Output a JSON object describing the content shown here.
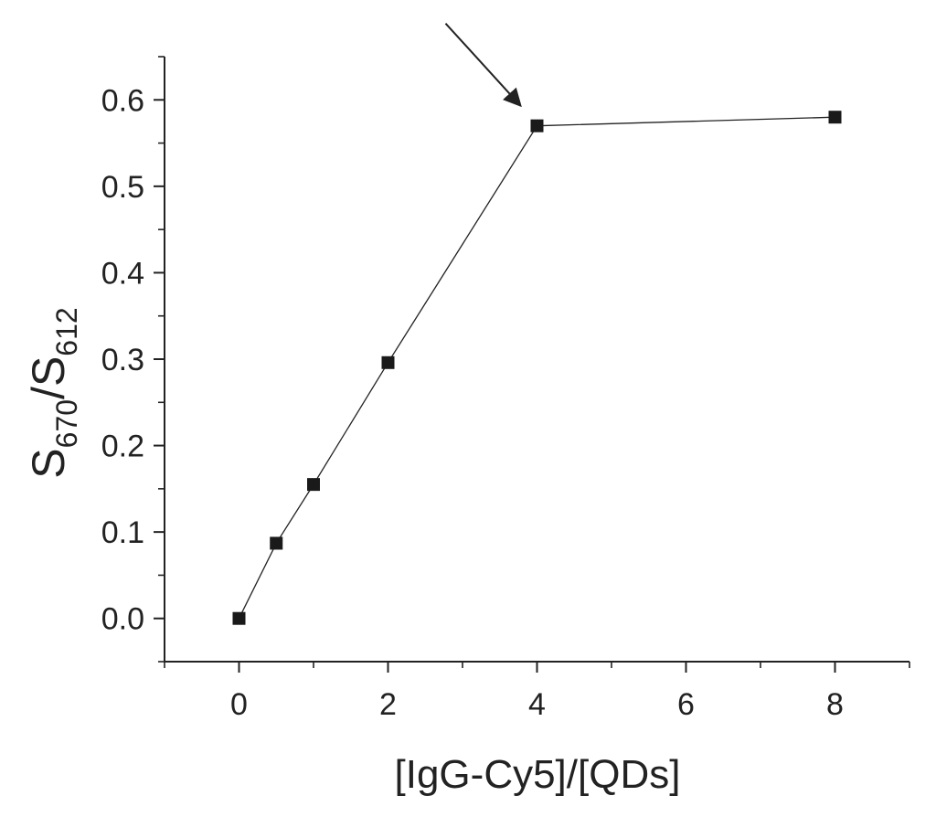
{
  "chart_data": {
    "type": "scatter",
    "title": "",
    "xlabel": "[IgG-Cy5]/[QDs]",
    "ylabel": {
      "base1": "S",
      "sub1": "670",
      "sep": "/S",
      "sub2": "612"
    },
    "xlim": [
      -1,
      9
    ],
    "ylim": [
      -0.05,
      0.65
    ],
    "x_ticks": [
      0,
      2,
      4,
      6,
      8
    ],
    "y_ticks": [
      0.0,
      0.1,
      0.2,
      0.3,
      0.4,
      0.5,
      0.6
    ],
    "x_tick_labels": [
      "0",
      "2",
      "4",
      "6",
      "8"
    ],
    "y_tick_labels": [
      "0.0",
      "0.1",
      "0.2",
      "0.3",
      "0.4",
      "0.5",
      "0.6"
    ],
    "grid": false,
    "marker": "square",
    "connected": true,
    "series": [
      {
        "x": [
          0,
          0.5,
          1,
          2,
          4,
          8
        ],
        "y": [
          0.0,
          0.087,
          0.155,
          0.296,
          0.57,
          0.58
        ]
      }
    ],
    "annotations": [
      {
        "type": "arrow",
        "points_to": {
          "x": 4,
          "y": 0.57
        }
      }
    ],
    "colors": {
      "line": "#222222",
      "marker": "#1a1a1a",
      "axis": "#222222"
    }
  }
}
